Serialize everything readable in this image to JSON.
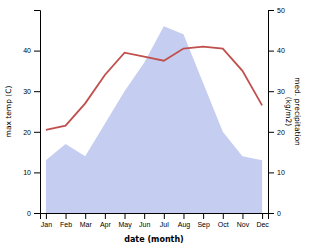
{
  "chart_data": {
    "type": "line",
    "categories": [
      "Jan",
      "Feb",
      "Mar",
      "Apr",
      "May",
      "Jun",
      "Jul",
      "Aug",
      "Sep",
      "Oct",
      "Nov",
      "Dec"
    ],
    "xlabel": "date (month)",
    "ylabel": "max temp (C)",
    "y2label": "med. precipitation\n(kg/m2)",
    "series": [
      {
        "type": "area",
        "axis": "y2",
        "color": "#c5cef0",
        "values": [
          13,
          17,
          14,
          22,
          30,
          37,
          46,
          44,
          32,
          20,
          14,
          13
        ]
      },
      {
        "type": "line",
        "color": "#c0504d",
        "values": [
          20.5,
          21.5,
          27.0,
          34.0,
          39.5,
          38.5,
          37.5,
          40.5,
          41.0,
          40.5,
          35.0,
          26.5
        ]
      }
    ],
    "ylim": [
      0,
      50
    ],
    "yticks": [
      0,
      10,
      20,
      30,
      40
    ],
    "y2lim": [
      0,
      50
    ],
    "y2ticks": [
      0,
      10,
      20,
      30,
      40,
      50
    ]
  }
}
